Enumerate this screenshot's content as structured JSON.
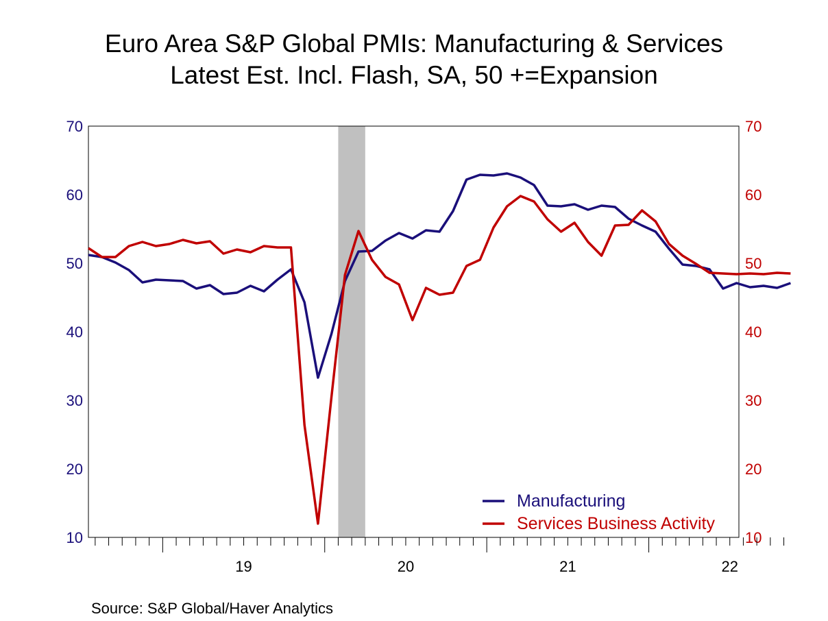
{
  "chart_data": {
    "type": "line",
    "title": "Euro Area S&P Global PMIs: Manufacturing & Services",
    "subtitle": "Latest Est. Incl. Flash, SA, 50 +=Expansion",
    "source": "Source:  S&P Global/Haver Analytics",
    "x_start": "2018-07",
    "x": [
      "2018-07",
      "2018-08",
      "2018-09",
      "2018-10",
      "2018-11",
      "2018-12",
      "2019-01",
      "2019-02",
      "2019-03",
      "2019-04",
      "2019-05",
      "2019-06",
      "2019-07",
      "2019-08",
      "2019-09",
      "2019-10",
      "2019-11",
      "2019-12",
      "2020-01",
      "2020-02",
      "2020-03",
      "2020-04",
      "2020-05",
      "2020-06",
      "2020-07",
      "2020-08",
      "2020-09",
      "2020-10",
      "2020-11",
      "2020-12",
      "2021-01",
      "2021-02",
      "2021-03",
      "2021-04",
      "2021-05",
      "2021-06",
      "2021-07",
      "2021-08",
      "2021-09",
      "2021-10",
      "2021-11",
      "2021-12",
      "2022-01",
      "2022-02",
      "2022-03",
      "2022-04",
      "2022-05",
      "2022-06",
      "2022-07",
      "2022-08",
      "2022-09",
      "2022-10",
      "2022-11"
    ],
    "x_tick_labels": [
      "19",
      "20",
      "21",
      "22"
    ],
    "ylim": [
      10,
      70
    ],
    "y_ticks": [
      10,
      20,
      30,
      40,
      50,
      60,
      70
    ],
    "shaded_period": [
      "2020-02",
      "2020-04"
    ],
    "legend_position": "bottom-right",
    "series": [
      {
        "name": "Manufacturing",
        "axis": "left",
        "color": "#1a0f7a",
        "values": [
          51.2,
          50.9,
          50.1,
          49.0,
          47.2,
          47.6,
          47.5,
          47.4,
          46.3,
          46.8,
          45.5,
          45.7,
          46.7,
          45.9,
          47.6,
          49.1,
          44.3,
          33.3,
          39.7,
          47.4,
          51.7,
          51.8,
          53.3,
          54.4,
          53.6,
          54.8,
          54.6,
          57.6,
          62.2,
          62.9,
          62.8,
          63.1,
          62.5,
          61.4,
          58.4,
          58.3,
          58.6,
          57.8,
          58.4,
          58.2,
          56.5,
          55.5,
          54.6,
          52.1,
          49.8,
          49.6,
          49.1,
          46.3,
          47.1,
          46.5,
          46.7,
          46.4,
          47.1
        ]
      },
      {
        "name": "Services Business Activity",
        "axis": "right",
        "color": "#c00000",
        "values": [
          52.2,
          50.9,
          50.9,
          52.5,
          53.1,
          52.5,
          52.8,
          53.4,
          52.9,
          53.2,
          51.4,
          52.0,
          51.6,
          52.5,
          52.3,
          52.3,
          26.4,
          12.0,
          30.5,
          48.3,
          54.7,
          50.5,
          48.0,
          46.9,
          41.7,
          46.4,
          45.4,
          45.7,
          49.6,
          50.5,
          55.2,
          58.3,
          59.8,
          59.0,
          56.4,
          54.6,
          55.9,
          53.1,
          51.1,
          55.5,
          55.6,
          57.7,
          56.1,
          52.8,
          51.1,
          49.9,
          48.6,
          48.5,
          48.4,
          48.5,
          48.4,
          48.6,
          48.5
        ]
      }
    ]
  },
  "colors": {
    "left_axis": "#1a0f7a",
    "right_axis": "#c00000",
    "shade": "#c0c0c0"
  }
}
